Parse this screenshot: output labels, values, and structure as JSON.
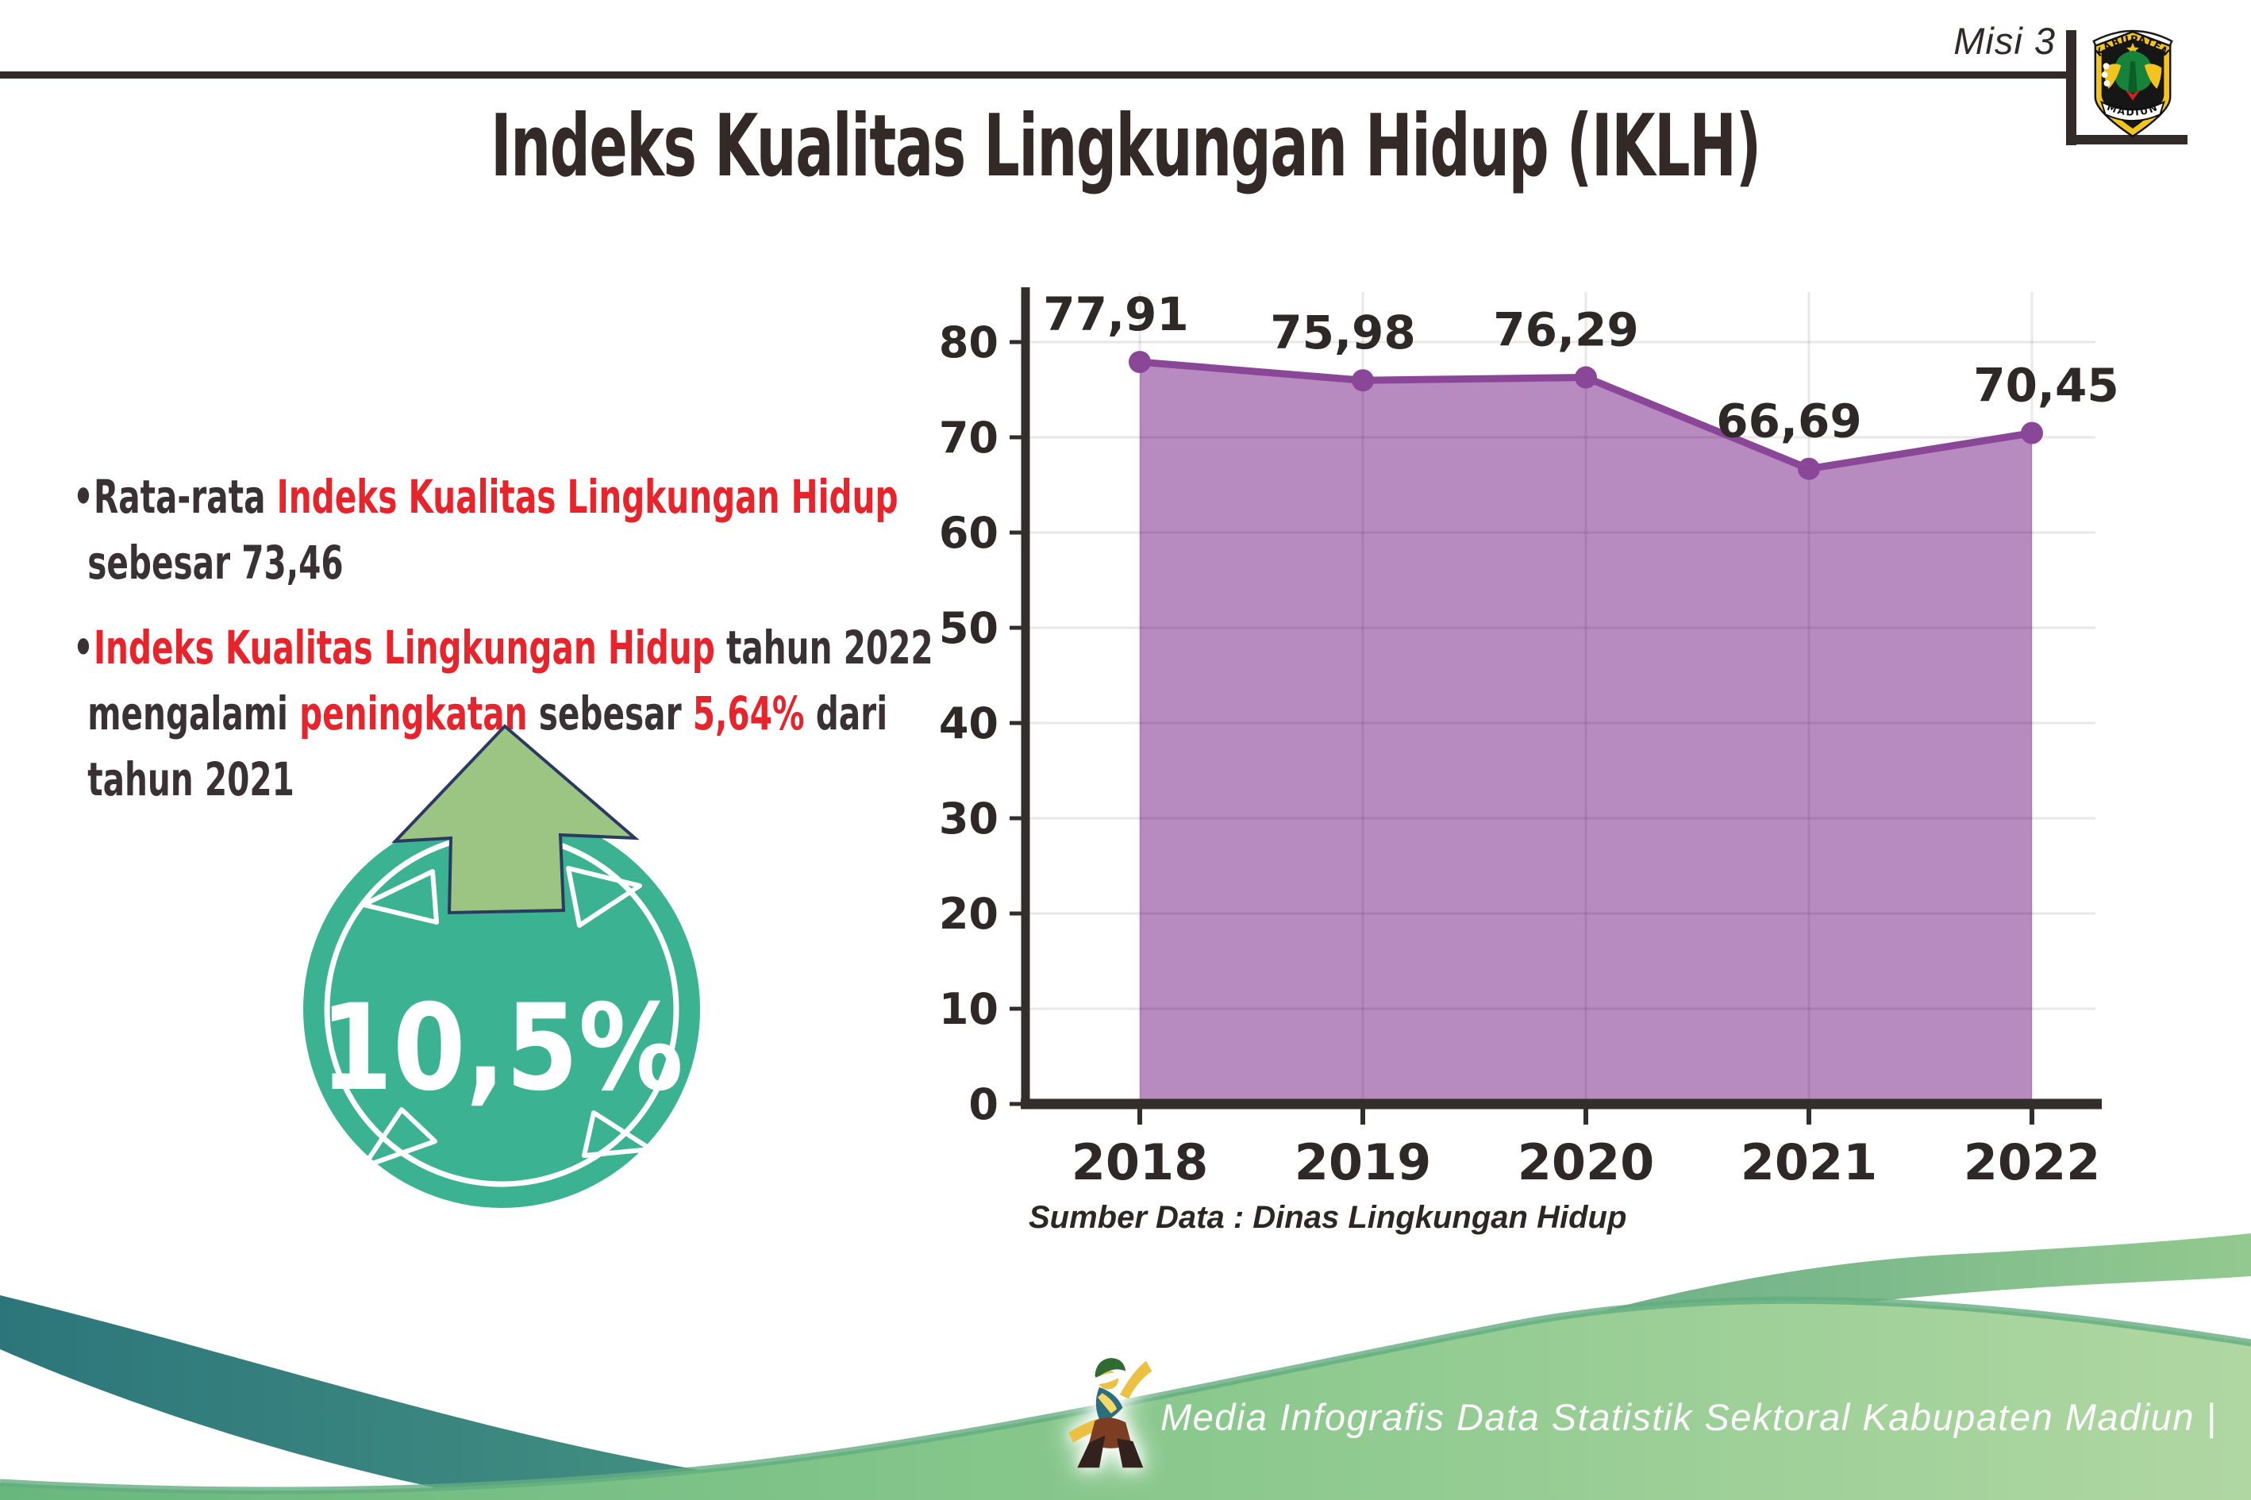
{
  "header": {
    "misi_label": "Misi 3",
    "logo": {
      "top_text": "KABUPATEN",
      "bottom_text": "MADIUN"
    }
  },
  "title": "Indeks Kualitas Lingkungan Hidup (IKLH)",
  "bullets": {
    "marker": "•",
    "b1": {
      "pre": "Rata-rata ",
      "highlight": "Indeks Kualitas Lingkungan Hidup",
      "line2": "sebesar 73,46"
    },
    "b2": {
      "highlight1": "Indeks Kualitas Lingkungan Hidup",
      "tail1": " tahun 2022",
      "line2_a": "mengalami ",
      "line2_b": "peningkatan",
      "line2_c": " sebesar ",
      "line2_d": "5,64%",
      "line2_e": " dari",
      "line3": "tahun 2021"
    }
  },
  "badge": {
    "value": "10,5%",
    "circle_color": "#3bb291",
    "arrow_color": "#9cc583",
    "arrow_outline": "#2b3a60"
  },
  "chart_data": {
    "type": "area",
    "categories": [
      "2018",
      "2019",
      "2020",
      "2021",
      "2022"
    ],
    "values": [
      77.91,
      75.98,
      76.29,
      66.69,
      70.45
    ],
    "labels": [
      "77,91",
      "75,98",
      "76,29",
      "66,69",
      "70,45"
    ],
    "ylim": [
      0,
      80
    ],
    "ytick_step": 10,
    "grid": true,
    "legend": "none",
    "fill_color": "#b78ac0",
    "line_color": "#8a4697",
    "axis_color": "#332d2b",
    "label_color": "#2e2927"
  },
  "source_label": "Sumber Data : Dinas Lingkungan Hidup",
  "footer": {
    "caption": "Media Infografis Data Statistik Sektoral Kabupaten Madiun |"
  }
}
